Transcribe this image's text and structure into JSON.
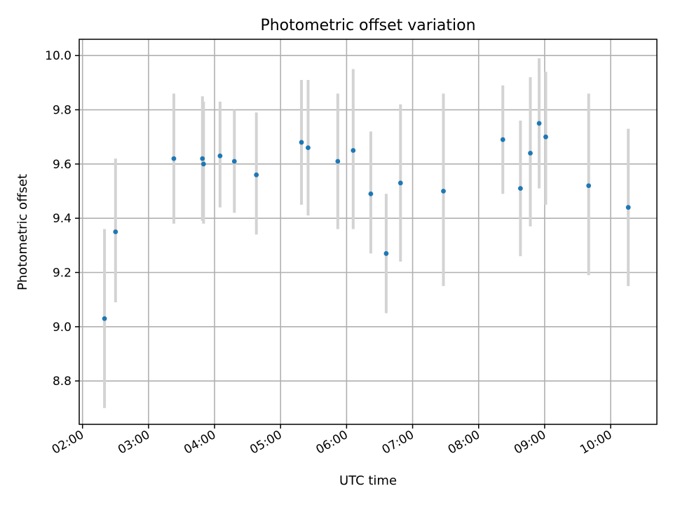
{
  "chart_data": {
    "type": "scatter",
    "title": "Photometric offset variation",
    "xlabel": "UTC time",
    "ylabel": "Photometric offset",
    "x_axis": "time",
    "xlim": [
      "01:57",
      "10:42"
    ],
    "ylim": [
      8.64,
      10.06
    ],
    "xticks": [
      "02:00",
      "03:00",
      "04:00",
      "05:00",
      "06:00",
      "07:00",
      "08:00",
      "09:00",
      "10:00"
    ],
    "yticks": [
      "8.8",
      "9.0",
      "9.2",
      "9.4",
      "9.6",
      "9.8",
      "10.0"
    ],
    "grid": true,
    "marker_color": "#1f77b4",
    "errorbar_color": "#d3d3d3",
    "points": [
      {
        "x": "02:20",
        "y": 9.03,
        "ylo": 8.7,
        "yhi": 9.36
      },
      {
        "x": "02:30",
        "y": 9.35,
        "ylo": 9.09,
        "yhi": 9.62
      },
      {
        "x": "03:23",
        "y": 9.62,
        "ylo": 9.38,
        "yhi": 9.86
      },
      {
        "x": "03:49",
        "y": 9.62,
        "ylo": 9.39,
        "yhi": 9.85
      },
      {
        "x": "03:50",
        "y": 9.6,
        "ylo": 9.38,
        "yhi": 9.83
      },
      {
        "x": "04:05",
        "y": 9.63,
        "ylo": 9.44,
        "yhi": 9.83
      },
      {
        "x": "04:18",
        "y": 9.61,
        "ylo": 9.42,
        "yhi": 9.8
      },
      {
        "x": "04:38",
        "y": 9.56,
        "ylo": 9.34,
        "yhi": 9.79
      },
      {
        "x": "05:19",
        "y": 9.68,
        "ylo": 9.45,
        "yhi": 9.91
      },
      {
        "x": "05:25",
        "y": 9.66,
        "ylo": 9.41,
        "yhi": 9.91
      },
      {
        "x": "05:52",
        "y": 9.61,
        "ylo": 9.36,
        "yhi": 9.86
      },
      {
        "x": "06:06",
        "y": 9.65,
        "ylo": 9.36,
        "yhi": 9.95
      },
      {
        "x": "06:22",
        "y": 9.49,
        "ylo": 9.27,
        "yhi": 9.72
      },
      {
        "x": "06:36",
        "y": 9.27,
        "ylo": 9.05,
        "yhi": 9.49
      },
      {
        "x": "06:49",
        "y": 9.53,
        "ylo": 9.24,
        "yhi": 9.82
      },
      {
        "x": "07:28",
        "y": 9.5,
        "ylo": 9.15,
        "yhi": 9.86
      },
      {
        "x": "08:22",
        "y": 9.69,
        "ylo": 9.49,
        "yhi": 9.89
      },
      {
        "x": "08:38",
        "y": 9.51,
        "ylo": 9.26,
        "yhi": 9.76
      },
      {
        "x": "08:47",
        "y": 9.64,
        "ylo": 9.37,
        "yhi": 9.92
      },
      {
        "x": "08:55",
        "y": 9.75,
        "ylo": 9.51,
        "yhi": 9.99
      },
      {
        "x": "09:01",
        "y": 9.7,
        "ylo": 9.45,
        "yhi": 9.94
      },
      {
        "x": "09:40",
        "y": 9.52,
        "ylo": 9.19,
        "yhi": 9.86
      },
      {
        "x": "10:16",
        "y": 9.44,
        "ylo": 9.15,
        "yhi": 9.73
      }
    ]
  }
}
